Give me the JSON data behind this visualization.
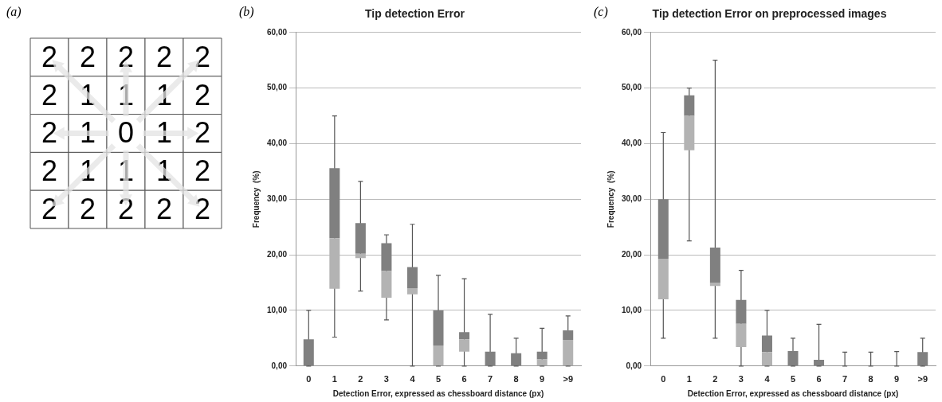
{
  "chart_data": [
    {
      "type": "heatmap",
      "annotations": [
        "(a)"
      ],
      "color": "#ffffff",
      "data_labels": true,
      "categories": [
        null,
        null,
        null,
        null,
        null
      ],
      "y_categories": [
        null,
        null,
        null,
        null,
        null
      ],
      "cells": [
        [
          2,
          2,
          2,
          2,
          2
        ],
        [
          2,
          1,
          1,
          1,
          2
        ],
        [
          2,
          1,
          0,
          1,
          2
        ],
        [
          2,
          1,
          1,
          1,
          2
        ],
        [
          2,
          2,
          2,
          2,
          2
        ]
      ]
    },
    {
      "type": "bar",
      "title": "Tip detection Error",
      "annotations": [
        "(b)"
      ],
      "xlabel": "Detection Error, expressed as chessboard distance (px)",
      "ylabel": "Frequency  (%)",
      "grid": "y",
      "categories": [
        "0",
        "1",
        "2",
        "3",
        "4",
        "5",
        "6",
        "7",
        "8",
        "9",
        ">9"
      ],
      "ylim": [
        0,
        60
      ],
      "yticks": [
        {
          "value": 0,
          "label": "0,00"
        },
        {
          "value": 10,
          "label": "10,00"
        },
        {
          "value": 20,
          "label": "20,00"
        },
        {
          "value": 30,
          "label": "30,00"
        },
        {
          "value": 40,
          "label": "40,00"
        },
        {
          "value": 50,
          "label": "50,00"
        },
        {
          "value": 60,
          "label": "60,00"
        }
      ],
      "series": [
        {
          "color": "#b3b3b3",
          "base": [
            null,
            13.9,
            19.4,
            12.3,
            12.9,
            0,
            2.6,
            null,
            null,
            0,
            0
          ],
          "values": [
            null,
            9.1,
            0.8,
            4.8,
            1.1,
            3.7,
            2.2,
            null,
            null,
            1.2,
            4.7
          ]
        },
        {
          "color": "#808080",
          "base": [
            0,
            23,
            20.2,
            17.1,
            14,
            3.7,
            4.8,
            0,
            0,
            1.2,
            4.7
          ],
          "values": [
            4.8,
            12.6,
            5.5,
            5,
            3.8,
            6.3,
            1.3,
            2.6,
            2.3,
            1.4,
            1.7
          ],
          "errors": [
            [
              0,
              10
            ],
            [
              5.2,
              45
            ],
            [
              13.5,
              33.2
            ],
            [
              8.3,
              23.6
            ],
            [
              0,
              25.5
            ],
            [
              0,
              16.3
            ],
            [
              0,
              15.7
            ],
            [
              0,
              9.3
            ],
            [
              0,
              5
            ],
            [
              0,
              6.8
            ],
            [
              0,
              9
            ]
          ]
        }
      ]
    },
    {
      "type": "bar",
      "title": "Tip detection Error on preprocessed images",
      "annotations": [
        "(c)"
      ],
      "xlabel": "Detection Error, expressed as chessboard distance (px)",
      "ylabel": "Frequency  (%)",
      "grid": "y",
      "categories": [
        "0",
        "1",
        "2",
        "3",
        "4",
        "5",
        "6",
        "7",
        "8",
        "9",
        ">9"
      ],
      "ylim": [
        0,
        60
      ],
      "yticks": [
        {
          "value": 0,
          "label": "0,00"
        },
        {
          "value": 10,
          "label": "10,00"
        },
        {
          "value": 20,
          "label": "20,00"
        },
        {
          "value": 30,
          "label": "30,00"
        },
        {
          "value": 40,
          "label": "40,00"
        },
        {
          "value": 50,
          "label": "50,00"
        },
        {
          "value": 60,
          "label": "60,00"
        }
      ],
      "series": [
        {
          "color": "#b3b3b3",
          "base": [
            12,
            38.8,
            14.4,
            3.4,
            0,
            null,
            null,
            null,
            null,
            null,
            null
          ],
          "values": [
            7.3,
            6.2,
            0.6,
            4.2,
            2.5,
            null,
            null,
            null,
            null,
            null,
            null
          ]
        },
        {
          "color": "#808080",
          "base": [
            19.3,
            45,
            15,
            7.6,
            2.5,
            0,
            0,
            null,
            null,
            null,
            0
          ],
          "values": [
            10.7,
            3.7,
            6.3,
            4.3,
            3,
            2.7,
            1.1,
            0,
            0,
            0,
            2.5
          ],
          "errors": [
            [
              5,
              42
            ],
            [
              22.5,
              50
            ],
            [
              5,
              55
            ],
            [
              0,
              17.2
            ],
            [
              0,
              10
            ],
            [
              0,
              5
            ],
            [
              0,
              7.5
            ],
            [
              0,
              2.5
            ],
            [
              0,
              2.5
            ],
            [
              0,
              2.6
            ],
            [
              0,
              5
            ]
          ]
        }
      ]
    }
  ]
}
